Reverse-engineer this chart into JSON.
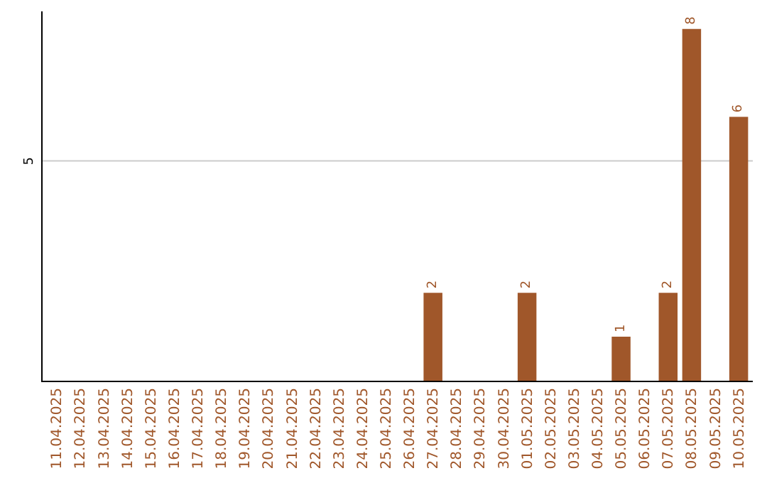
{
  "chart_data": {
    "type": "bar",
    "categories": [
      "11.04.2025",
      "12.04.2025",
      "13.04.2025",
      "14.04.2025",
      "15.04.2025",
      "16.04.2025",
      "17.04.2025",
      "18.04.2025",
      "19.04.2025",
      "20.04.2025",
      "21.04.2025",
      "22.04.2025",
      "23.04.2025",
      "24.04.2025",
      "25.04.2025",
      "26.04.2025",
      "27.04.2025",
      "28.04.2025",
      "29.04.2025",
      "30.04.2025",
      "01.05.2025",
      "02.05.2025",
      "03.05.2025",
      "04.05.2025",
      "05.05.2025",
      "06.05.2025",
      "07.05.2025",
      "08.05.2025",
      "09.05.2025",
      "10.05.2025"
    ],
    "values": [
      null,
      null,
      null,
      null,
      null,
      null,
      null,
      null,
      null,
      null,
      null,
      null,
      null,
      null,
      null,
      null,
      2,
      null,
      null,
      null,
      2,
      null,
      null,
      null,
      1,
      null,
      2,
      8,
      null,
      6
    ],
    "data_labels": true,
    "ylim": [
      0,
      8.4
    ],
    "color": "#a0572a",
    "ref_lines": [
      {
        "axis": "y",
        "value": 5,
        "label": "5",
        "color": "#cccccc"
      }
    ],
    "legend": false
  }
}
